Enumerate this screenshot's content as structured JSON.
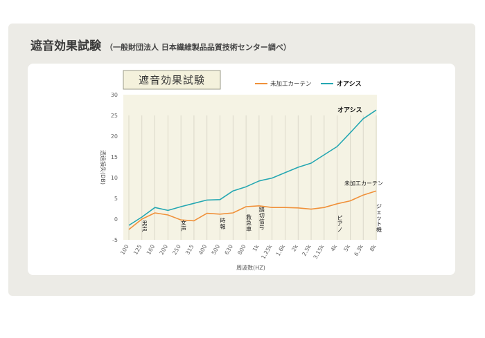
{
  "header": {
    "title": "遮音効果試験",
    "subtitle": "（一般財団法人 日本繊維製品品質技術センター調べ）"
  },
  "chart_data": {
    "type": "line",
    "title": "遮音効果試験",
    "xlabel": "周波数(HZ)",
    "ylabel": "透過損失(DB)",
    "categories": [
      "100",
      "125",
      "160",
      "200",
      "250",
      "315",
      "400",
      "500",
      "630",
      "800",
      "1k",
      "1.25k",
      "1.6k",
      "2k",
      "2.5k",
      "3.15k",
      "4k",
      "5k",
      "6.3k",
      "8k"
    ],
    "ylim": [
      -5,
      30
    ],
    "yticks": [
      -5,
      0,
      5,
      10,
      15,
      20,
      25,
      30
    ],
    "grid": "vertical",
    "legend_position": "top-right",
    "series": [
      {
        "name": "未加工カーテン",
        "color": "#f0913a",
        "values": [
          -2.5,
          0,
          1.5,
          1,
          -0.2,
          -0.4,
          1.4,
          1.2,
          1.5,
          3,
          3.2,
          2.8,
          2.8,
          2.7,
          2.4,
          2.8,
          3.7,
          4.4,
          5.8,
          6.8
        ],
        "end_label": "未加工カーテン"
      },
      {
        "name": "オアシス",
        "color": "#24a7b2",
        "values": [
          -1.5,
          0.5,
          2.8,
          2.1,
          3,
          3.8,
          4.6,
          4.7,
          6.8,
          7.8,
          9.2,
          9.9,
          11.2,
          12.5,
          13.5,
          15.5,
          17.5,
          20.8,
          24.2,
          26.3
        ],
        "end_label": "オアシス"
      }
    ],
    "annotations": [
      {
        "label": "男声",
        "category": "125"
      },
      {
        "label": "女声",
        "category": "250"
      },
      {
        "label": "時報",
        "category": "500"
      },
      {
        "label": "救急車",
        "category": "800"
      },
      {
        "label": "踏切信号",
        "category": "1k"
      },
      {
        "label": "ピアノ",
        "category": "4k"
      },
      {
        "label": "ジェット機",
        "category": "8k"
      }
    ]
  }
}
